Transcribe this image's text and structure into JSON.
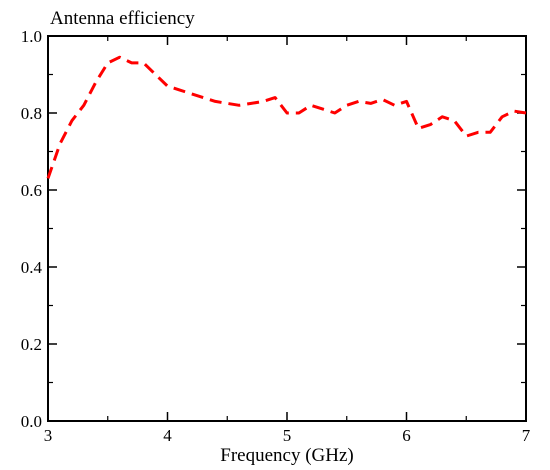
{
  "chart_data": {
    "type": "line",
    "title": "",
    "ylabel": "Antenna efficiency",
    "xlabel": "Frequency (GHz)",
    "xlim": [
      3,
      7
    ],
    "ylim": [
      0.0,
      1.0
    ],
    "x_ticks": [
      3,
      4,
      5,
      6,
      7
    ],
    "x_tick_labels": [
      "3",
      "4",
      "5",
      "6",
      "7"
    ],
    "y_ticks": [
      0.0,
      0.2,
      0.4,
      0.6,
      0.8,
      1.0
    ],
    "y_tick_labels": [
      "0.0",
      "0.2",
      "0.4",
      "0.6",
      "0.8",
      "1.0"
    ],
    "grid": false,
    "series": [
      {
        "color": "#ff0000",
        "line_style": "dashed",
        "x": [
          3.0,
          3.1,
          3.2,
          3.3,
          3.4,
          3.5,
          3.6,
          3.7,
          3.8,
          3.9,
          4.0,
          4.1,
          4.2,
          4.3,
          4.4,
          4.5,
          4.6,
          4.7,
          4.8,
          4.9,
          5.0,
          5.1,
          5.2,
          5.3,
          5.4,
          5.5,
          5.6,
          5.7,
          5.8,
          5.9,
          6.0,
          6.1,
          6.2,
          6.3,
          6.4,
          6.5,
          6.6,
          6.7,
          6.8,
          6.9,
          7.0
        ],
        "y": [
          0.63,
          0.72,
          0.78,
          0.82,
          0.88,
          0.93,
          0.945,
          0.93,
          0.93,
          0.9,
          0.87,
          0.86,
          0.85,
          0.84,
          0.83,
          0.825,
          0.82,
          0.825,
          0.83,
          0.84,
          0.8,
          0.8,
          0.82,
          0.81,
          0.8,
          0.82,
          0.83,
          0.825,
          0.835,
          0.82,
          0.83,
          0.76,
          0.77,
          0.79,
          0.78,
          0.74,
          0.75,
          0.75,
          0.79,
          0.805,
          0.8
        ]
      }
    ]
  }
}
